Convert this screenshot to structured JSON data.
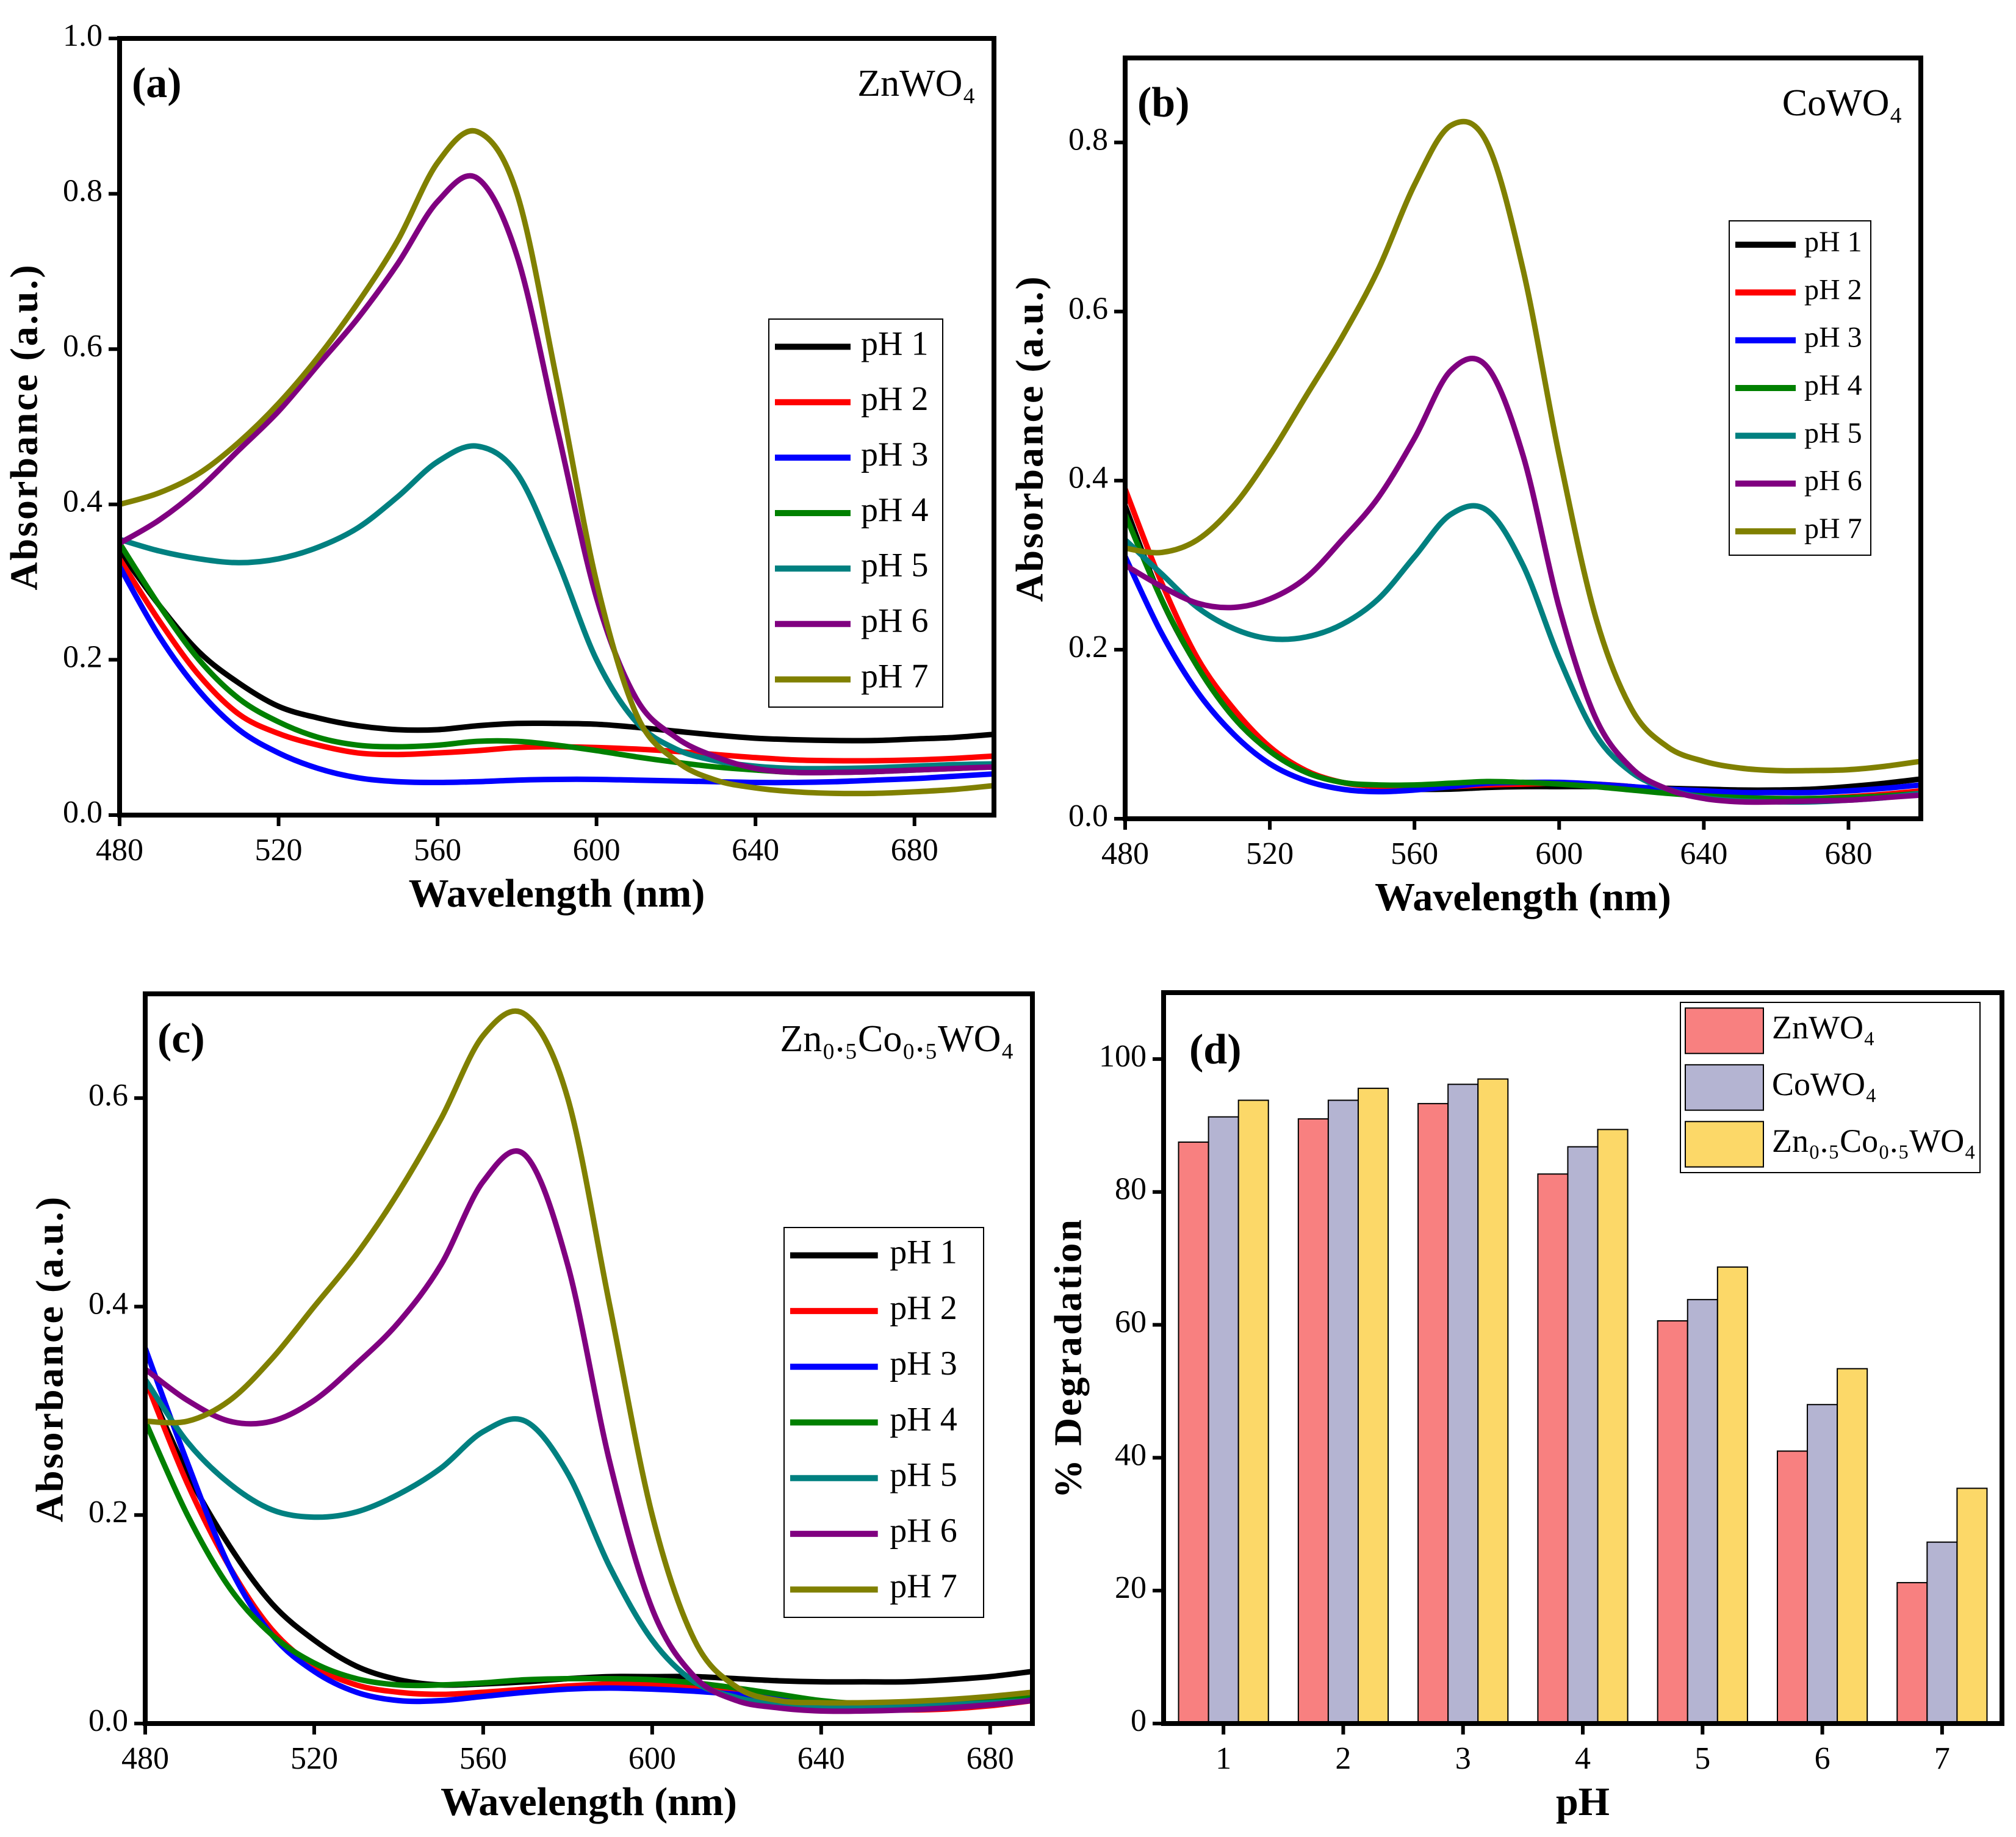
{
  "chart_data": [
    {
      "type": "line",
      "label": "(a)",
      "annotation": "ZnWO₄",
      "xlabel": "Wavelength (nm)",
      "ylabel": "Absorbance (a.u.)",
      "x": [
        480,
        490,
        500,
        510,
        520,
        530,
        540,
        550,
        560,
        570,
        580,
        590,
        600,
        610,
        620,
        630,
        640,
        650,
        660,
        670,
        680,
        690,
        700
      ],
      "xlim": [
        480,
        700
      ],
      "xticks": [
        480,
        520,
        560,
        600,
        640,
        680
      ],
      "ylim": [
        0,
        1
      ],
      "yticks": [
        {
          "value": 0,
          "label": "0.0"
        },
        0.2,
        0.4,
        0.6,
        0.8,
        {
          "value": 1,
          "label": "1.0"
        }
      ],
      "series": [
        {
          "name": "pH 1",
          "color": "#000000",
          "values": [
            0.34,
            0.27,
            0.21,
            0.17,
            0.14,
            0.125,
            0.115,
            0.11,
            0.11,
            0.115,
            0.118,
            0.118,
            0.117,
            0.113,
            0.108,
            0.103,
            0.099,
            0.097,
            0.096,
            0.096,
            0.098,
            0.1,
            0.104
          ]
        },
        {
          "name": "pH 2",
          "color": "#ff0000",
          "values": [
            0.33,
            0.25,
            0.18,
            0.13,
            0.105,
            0.09,
            0.08,
            0.078,
            0.08,
            0.083,
            0.087,
            0.088,
            0.087,
            0.085,
            0.082,
            0.078,
            0.074,
            0.071,
            0.07,
            0.07,
            0.071,
            0.073,
            0.076
          ]
        },
        {
          "name": "pH 3",
          "color": "#0000ff",
          "values": [
            0.32,
            0.23,
            0.16,
            0.11,
            0.08,
            0.06,
            0.048,
            0.043,
            0.042,
            0.043,
            0.045,
            0.046,
            0.046,
            0.045,
            0.044,
            0.043,
            0.042,
            0.042,
            0.043,
            0.045,
            0.047,
            0.05,
            0.053
          ]
        },
        {
          "name": "pH 4",
          "color": "#008000",
          "values": [
            0.35,
            0.27,
            0.2,
            0.15,
            0.12,
            0.1,
            0.09,
            0.088,
            0.09,
            0.095,
            0.095,
            0.09,
            0.083,
            0.075,
            0.068,
            0.062,
            0.058,
            0.055,
            0.055,
            0.056,
            0.058,
            0.06,
            0.062
          ]
        },
        {
          "name": "pH 5",
          "color": "#008080",
          "values": [
            0.355,
            0.34,
            0.33,
            0.325,
            0.33,
            0.345,
            0.37,
            0.41,
            0.455,
            0.475,
            0.44,
            0.33,
            0.2,
            0.12,
            0.085,
            0.07,
            0.063,
            0.06,
            0.06,
            0.061,
            0.063,
            0.065,
            0.066
          ]
        },
        {
          "name": "pH 6",
          "color": "#800080",
          "values": [
            0.35,
            0.38,
            0.42,
            0.47,
            0.52,
            0.58,
            0.64,
            0.71,
            0.79,
            0.82,
            0.72,
            0.5,
            0.28,
            0.15,
            0.1,
            0.075,
            0.06,
            0.055,
            0.055,
            0.056,
            0.058,
            0.06,
            0.062
          ]
        },
        {
          "name": "pH 7",
          "color": "#808000",
          "values": [
            0.4,
            0.415,
            0.44,
            0.48,
            0.53,
            0.59,
            0.66,
            0.74,
            0.84,
            0.88,
            0.8,
            0.56,
            0.3,
            0.13,
            0.07,
            0.045,
            0.035,
            0.03,
            0.028,
            0.028,
            0.03,
            0.033,
            0.038
          ]
        }
      ]
    },
    {
      "type": "line",
      "label": "(b)",
      "annotation": "CoWO₄",
      "xlabel": "Wavelength (nm)",
      "ylabel": "Absorbance (a.u.)",
      "x": [
        480,
        490,
        500,
        510,
        520,
        530,
        540,
        550,
        560,
        570,
        580,
        590,
        600,
        610,
        620,
        630,
        640,
        650,
        660,
        670,
        680,
        690,
        700
      ],
      "xlim": [
        480,
        700
      ],
      "xticks": [
        480,
        520,
        560,
        600,
        640,
        680
      ],
      "ylim": [
        0,
        0.9
      ],
      "yticks": [
        {
          "value": 0,
          "label": "0.0"
        },
        0.2,
        0.4,
        0.6,
        0.8
      ],
      "series": [
        {
          "name": "pH 1",
          "color": "#000000",
          "values": [
            0.37,
            0.26,
            0.18,
            0.12,
            0.08,
            0.055,
            0.043,
            0.038,
            0.035,
            0.035,
            0.037,
            0.038,
            0.038,
            0.038,
            0.037,
            0.036,
            0.035,
            0.034,
            0.034,
            0.035,
            0.038,
            0.042,
            0.047
          ]
        },
        {
          "name": "pH 2",
          "color": "#ff0000",
          "values": [
            0.39,
            0.28,
            0.19,
            0.13,
            0.085,
            0.057,
            0.043,
            0.038,
            0.037,
            0.038,
            0.04,
            0.041,
            0.042,
            0.041,
            0.038,
            0.033,
            0.028,
            0.025,
            0.024,
            0.024,
            0.026,
            0.029,
            0.033
          ]
        },
        {
          "name": "pH 3",
          "color": "#0000ff",
          "values": [
            0.31,
            0.22,
            0.15,
            0.1,
            0.065,
            0.045,
            0.035,
            0.032,
            0.034,
            0.038,
            0.042,
            0.043,
            0.043,
            0.041,
            0.038,
            0.035,
            0.033,
            0.031,
            0.031,
            0.031,
            0.033,
            0.036,
            0.04
          ]
        },
        {
          "name": "pH 4",
          "color": "#008000",
          "values": [
            0.36,
            0.26,
            0.18,
            0.12,
            0.08,
            0.055,
            0.043,
            0.04,
            0.04,
            0.042,
            0.044,
            0.043,
            0.041,
            0.038,
            0.034,
            0.03,
            0.027,
            0.025,
            0.024,
            0.024,
            0.025,
            0.027,
            0.03
          ]
        },
        {
          "name": "pH 5",
          "color": "#008080",
          "values": [
            0.33,
            0.29,
            0.25,
            0.225,
            0.213,
            0.215,
            0.23,
            0.26,
            0.31,
            0.36,
            0.365,
            0.3,
            0.19,
            0.1,
            0.055,
            0.035,
            0.025,
            0.021,
            0.02,
            0.02,
            0.022,
            0.025,
            0.03
          ]
        },
        {
          "name": "pH 6",
          "color": "#800080",
          "values": [
            0.3,
            0.275,
            0.255,
            0.25,
            0.26,
            0.285,
            0.33,
            0.38,
            0.45,
            0.53,
            0.535,
            0.43,
            0.25,
            0.12,
            0.06,
            0.035,
            0.024,
            0.02,
            0.02,
            0.021,
            0.022,
            0.025,
            0.028
          ]
        },
        {
          "name": "pH 7",
          "color": "#808000",
          "values": [
            0.32,
            0.315,
            0.33,
            0.37,
            0.43,
            0.5,
            0.57,
            0.65,
            0.75,
            0.82,
            0.8,
            0.65,
            0.43,
            0.24,
            0.13,
            0.085,
            0.068,
            0.06,
            0.057,
            0.057,
            0.058,
            0.062,
            0.068
          ]
        }
      ]
    },
    {
      "type": "line",
      "label": "(c)",
      "annotation": "Zn₀.₅Co₀.₅WO₄",
      "xlabel": "Wavelength (nm)",
      "ylabel": "Absorbance (a.u.)",
      "x": [
        480,
        490,
        500,
        510,
        520,
        530,
        540,
        550,
        560,
        570,
        580,
        590,
        600,
        610,
        620,
        630,
        640,
        650,
        660,
        670,
        680,
        690
      ],
      "xlim": [
        480,
        690
      ],
      "xticks": [
        480,
        520,
        560,
        600,
        640,
        680
      ],
      "ylim": [
        0,
        0.7
      ],
      "yticks": [
        {
          "value": 0,
          "label": "0.0"
        },
        0.2,
        0.4,
        0.6
      ],
      "series": [
        {
          "name": "pH 1",
          "color": "#000000",
          "values": [
            0.33,
            0.24,
            0.17,
            0.115,
            0.08,
            0.055,
            0.042,
            0.037,
            0.038,
            0.04,
            0.043,
            0.045,
            0.045,
            0.045,
            0.043,
            0.041,
            0.04,
            0.04,
            0.04,
            0.042,
            0.045,
            0.05
          ]
        },
        {
          "name": "pH 2",
          "color": "#ff0000",
          "values": [
            0.33,
            0.23,
            0.15,
            0.09,
            0.055,
            0.037,
            0.03,
            0.028,
            0.03,
            0.033,
            0.036,
            0.038,
            0.038,
            0.036,
            0.032,
            0.025,
            0.018,
            0.014,
            0.013,
            0.014,
            0.017,
            0.022
          ]
        },
        {
          "name": "pH 3",
          "color": "#0000ff",
          "values": [
            0.36,
            0.25,
            0.15,
            0.085,
            0.05,
            0.03,
            0.022,
            0.022,
            0.026,
            0.03,
            0.033,
            0.034,
            0.033,
            0.031,
            0.028,
            0.024,
            0.02,
            0.017,
            0.017,
            0.018,
            0.02,
            0.024
          ]
        },
        {
          "name": "pH 4",
          "color": "#008000",
          "values": [
            0.29,
            0.2,
            0.13,
            0.085,
            0.058,
            0.043,
            0.037,
            0.037,
            0.039,
            0.042,
            0.043,
            0.043,
            0.042,
            0.039,
            0.034,
            0.028,
            0.022,
            0.019,
            0.019,
            0.02,
            0.023,
            0.028
          ]
        },
        {
          "name": "pH 5",
          "color": "#008080",
          "values": [
            0.33,
            0.27,
            0.23,
            0.205,
            0.198,
            0.203,
            0.22,
            0.245,
            0.28,
            0.29,
            0.24,
            0.15,
            0.08,
            0.04,
            0.025,
            0.018,
            0.016,
            0.016,
            0.017,
            0.018,
            0.02,
            0.022
          ]
        },
        {
          "name": "pH 6",
          "color": "#800080",
          "values": [
            0.34,
            0.31,
            0.29,
            0.29,
            0.31,
            0.345,
            0.385,
            0.44,
            0.52,
            0.545,
            0.44,
            0.25,
            0.11,
            0.045,
            0.022,
            0.015,
            0.012,
            0.012,
            0.013,
            0.015,
            0.018,
            0.022
          ]
        },
        {
          "name": "pH 7",
          "color": "#808000",
          "values": [
            0.29,
            0.29,
            0.31,
            0.35,
            0.4,
            0.45,
            0.51,
            0.58,
            0.66,
            0.68,
            0.6,
            0.4,
            0.2,
            0.08,
            0.035,
            0.022,
            0.02,
            0.02,
            0.021,
            0.023,
            0.026,
            0.03
          ]
        }
      ]
    },
    {
      "type": "bar",
      "label": "(d)",
      "xlabel": "pH",
      "ylabel": "% Degradation",
      "categories": [
        "1",
        "2",
        "3",
        "4",
        "5",
        "6",
        "7"
      ],
      "ylim": [
        0,
        110
      ],
      "yticks": [
        0,
        20,
        40,
        60,
        80,
        100
      ],
      "series": [
        {
          "name": "ZnWO₄",
          "color": "#f88080",
          "values": [
            87.5,
            91,
            93.3,
            82.7,
            60.6,
            41,
            21.2
          ]
        },
        {
          "name": "CoWO₄",
          "color": "#b4b4d2",
          "values": [
            91.3,
            93.8,
            96.2,
            86.8,
            63.8,
            48,
            27.3
          ]
        },
        {
          "name": "Zn₀.₅Co₀.₅WO₄",
          "color": "#fcd868",
          "values": [
            93.8,
            95.6,
            97,
            89.4,
            68.7,
            53.4,
            35.4
          ]
        }
      ]
    }
  ]
}
